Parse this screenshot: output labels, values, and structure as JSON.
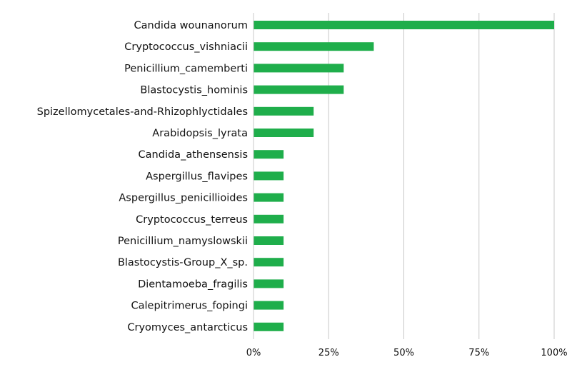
{
  "chart_data": {
    "type": "bar",
    "orientation": "horizontal",
    "categories": [
      "Candida wounanorum",
      "Cryptococcus_vishniacii",
      "Penicillium_camemberti",
      "Blastocystis_hominis",
      "Spizellomycetales-and-Rhizophlyctidales",
      "Arabidopsis_lyrata",
      "Candida_athensensis",
      "Aspergillus_flavipes",
      "Aspergillus_penicillioides",
      "Cryptococcus_terreus",
      "Penicillium_namyslowskii",
      "Blastocystis-Group_X_sp.",
      "Dientamoeba_fragilis",
      "Calepitrimerus_fopingi",
      "Cryomyces_antarcticus"
    ],
    "values": [
      100,
      40,
      30,
      30,
      20,
      20,
      10,
      10,
      10,
      10,
      10,
      10,
      10,
      10,
      10
    ],
    "xlim": [
      0,
      100
    ],
    "xticks": [
      0,
      25,
      50,
      75,
      100
    ],
    "xtick_labels": [
      "0%",
      "25%",
      "50%",
      "75%",
      "100%"
    ],
    "grid": "vertical",
    "legend": "none",
    "title": "",
    "xlabel": "",
    "ylabel": "",
    "bar_color": "#1fae4b",
    "grid_color": "#c8c8c8",
    "text_color": "#111111"
  }
}
